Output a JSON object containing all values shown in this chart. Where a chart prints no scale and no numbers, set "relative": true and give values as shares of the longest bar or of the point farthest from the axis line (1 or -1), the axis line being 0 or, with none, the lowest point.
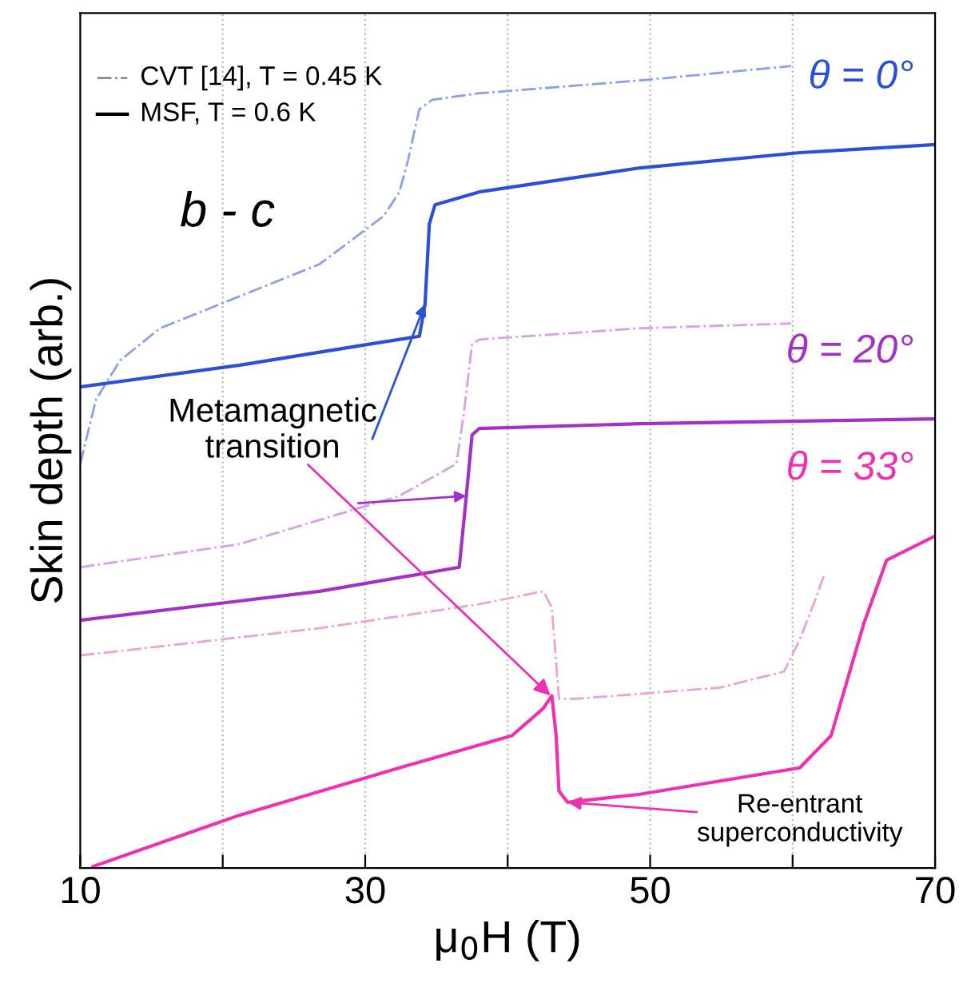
{
  "chart_data": {
    "type": "line",
    "relative": true,
    "xlabel": "μ$_{0}$H (T)",
    "ylabel": "Skin depth (arb.)",
    "xlim": [
      10,
      70
    ],
    "xticks": [
      10,
      {
        "value": 20,
        "label": null
      },
      30,
      {
        "value": 40,
        "label": null
      },
      50,
      {
        "value": 60,
        "label": null
      },
      70
    ],
    "grid": "x",
    "series": [
      {
        "color": "#8aa0e8",
        "line_style": "dashed",
        "x": [
          10,
          11.1,
          12.8,
          15.6,
          21.2,
          26.8,
          31.3,
          32.4,
          33.0,
          33.8,
          34.7,
          38.0,
          49.3,
          59.9
        ],
        "values": [
          0.504,
          0.584,
          0.633,
          0.673,
          0.713,
          0.753,
          0.813,
          0.843,
          0.882,
          0.946,
          0.958,
          0.966,
          0.982,
          1.0
        ]
      },
      {
        "name": "θ = 0°",
        "color": "#2b50d8",
        "line_style": "solid",
        "x": [
          10,
          21.2,
          30.2,
          33.8,
          34.2,
          34.5,
          34.9,
          38.0,
          49.3,
          60.5,
          70
        ],
        "values": [
          0.6,
          0.627,
          0.653,
          0.663,
          0.703,
          0.803,
          0.827,
          0.843,
          0.873,
          0.892,
          0.902
        ]
      },
      {
        "color": "#d8a0e8",
        "line_style": "dashed",
        "x": [
          10,
          21.2,
          32.4,
          36.4,
          36.9,
          37.5,
          38.0,
          49.3,
          59.9
        ],
        "values": [
          0.375,
          0.404,
          0.464,
          0.504,
          0.564,
          0.653,
          0.659,
          0.673,
          0.679
        ]
      },
      {
        "name": "θ = 20°",
        "color": "#a530c8",
        "line_style": "solid",
        "x": [
          10,
          26.8,
          36.6,
          37.1,
          37.5,
          38.0,
          49.3,
          70
        ],
        "values": [
          0.309,
          0.345,
          0.375,
          0.464,
          0.54,
          0.548,
          0.554,
          0.56
        ]
      },
      {
        "color": "#f0a0d8",
        "line_style": "dashed",
        "x": [
          10,
          26.8,
          38.0,
          42.5,
          43.1,
          43.6,
          44.8,
          54.9,
          59.4,
          60.5,
          61.6,
          62.2
        ],
        "values": [
          0.265,
          0.299,
          0.329,
          0.345,
          0.325,
          0.211,
          0.211,
          0.225,
          0.245,
          0.285,
          0.335,
          0.365
        ]
      },
      {
        "name": "θ = 33°",
        "color": "#f030b0",
        "line_style": "solid",
        "x": [
          10.9,
          21.2,
          32.4,
          40.3,
          42.5,
          43.1,
          43.4,
          43.6,
          44.2,
          49.3,
          60.5,
          62.7,
          65.0,
          66.6,
          70
        ],
        "values": [
          0.002,
          0.066,
          0.125,
          0.165,
          0.199,
          0.215,
          0.165,
          0.096,
          0.082,
          0.092,
          0.125,
          0.165,
          0.305,
          0.384,
          0.414
        ]
      }
    ],
    "annotations": [
      "CVT [14], T = 0.45 K",
      "MSF, T = 0.6 K",
      "b - c",
      {
        "text": "Metamagnetic\ntransition",
        "x": 43.0,
        "y": 0.215
      },
      "Re-entrant\nsuperconductivity"
    ]
  }
}
